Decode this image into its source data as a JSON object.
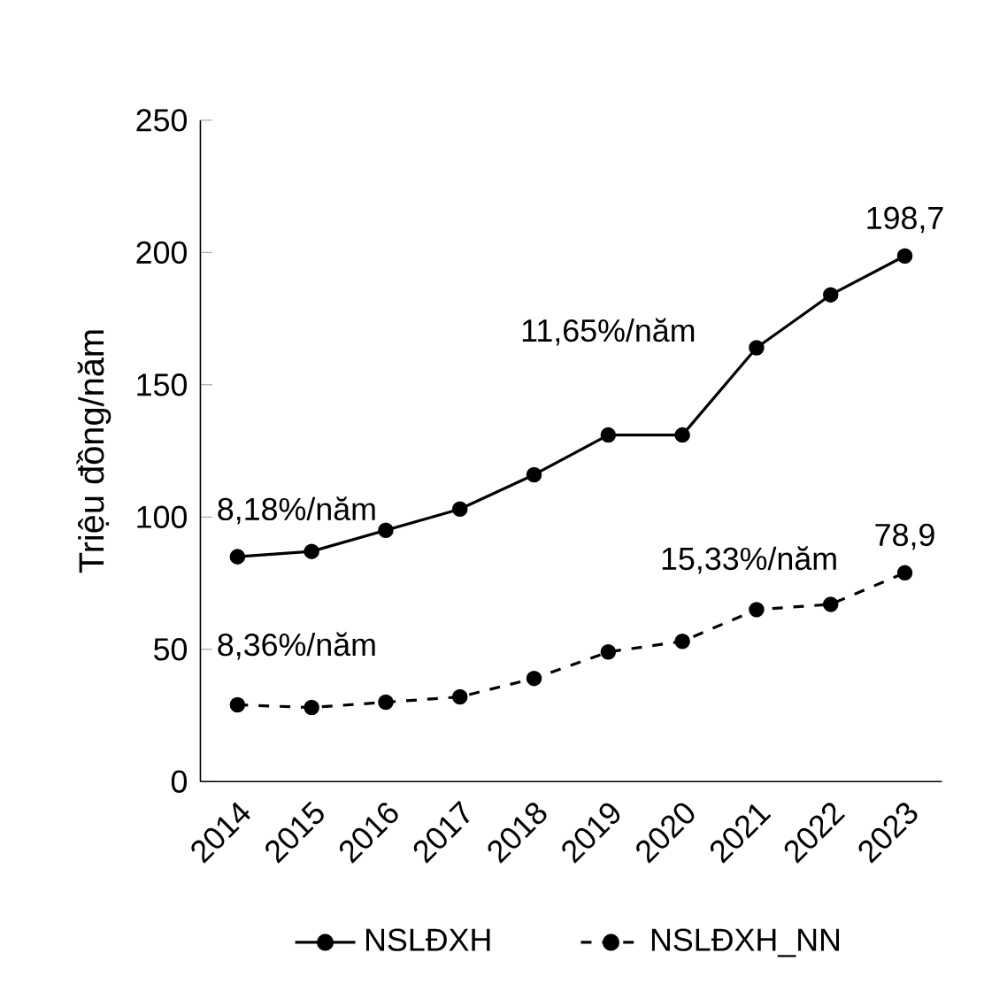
{
  "chart_data": {
    "type": "line",
    "ylabel": "Triệu đồng/năm",
    "categories": [
      "2014",
      "2015",
      "2016",
      "2017",
      "2018",
      "2019",
      "2020",
      "2021",
      "2022",
      "2023"
    ],
    "series": [
      {
        "name": "NSLĐXH",
        "color": "#000000",
        "line_style": "solid",
        "values": [
          85,
          87,
          95,
          103,
          116,
          131,
          131,
          164,
          184,
          198.7
        ],
        "value_labels": [
          null,
          null,
          null,
          null,
          null,
          null,
          null,
          null,
          null,
          "198,7"
        ]
      },
      {
        "name": "NSLĐXH_NN",
        "color": "#000000",
        "line_style": "dashed",
        "values": [
          29,
          28,
          30,
          32,
          39,
          49,
          53,
          65,
          67,
          78.9
        ],
        "value_labels": [
          null,
          null,
          null,
          null,
          null,
          null,
          null,
          null,
          null,
          "78,9"
        ]
      }
    ],
    "ylim": [
      0,
      250
    ],
    "yticks": [
      0,
      50,
      100,
      150,
      200,
      250
    ],
    "grid": false,
    "legend": "bottom",
    "marker": "circle",
    "annotations": [
      "8,18%/năm",
      "11,65%/năm",
      "8,36%/năm",
      "15,33%/năm"
    ]
  }
}
